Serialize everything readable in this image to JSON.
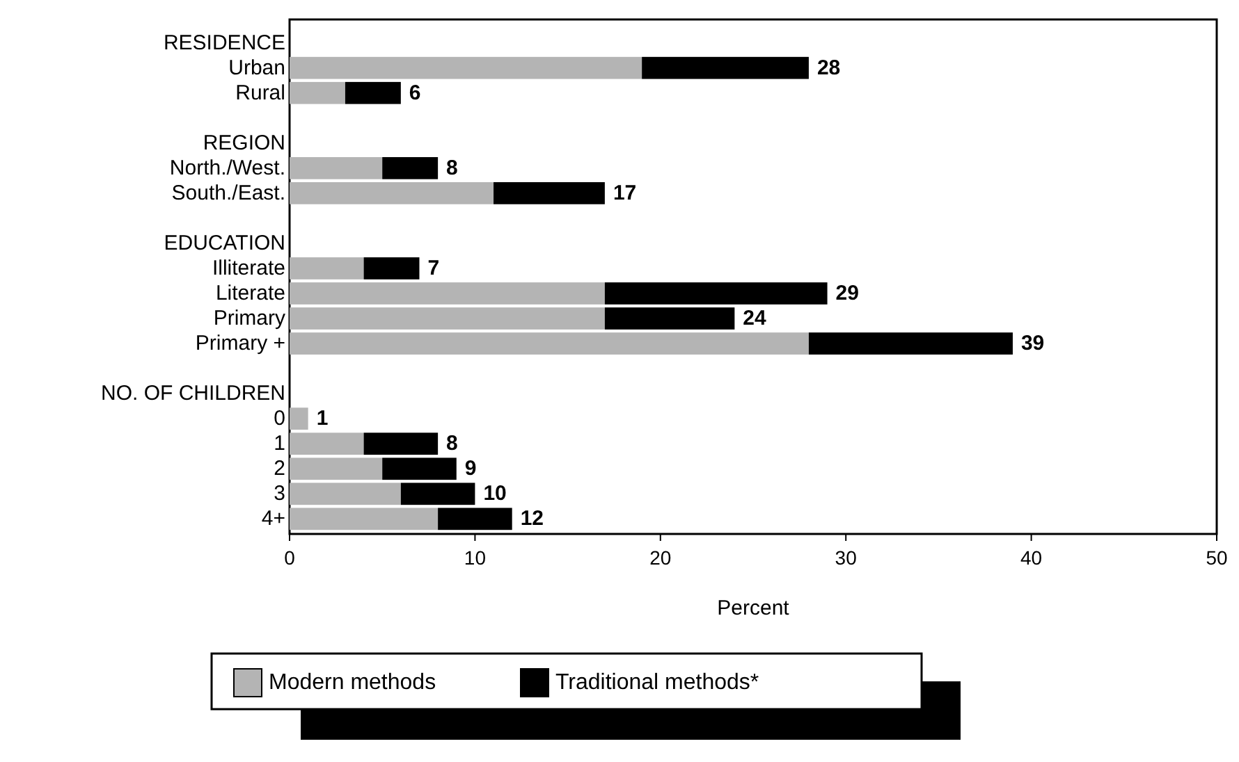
{
  "chart_data": {
    "type": "bar",
    "orientation": "horizontal",
    "stacked": true,
    "categories": [
      "RESIDENCE",
      "Urban",
      "Rural",
      null,
      "REGION",
      "North./West.",
      "South./East.",
      null,
      "EDUCATION",
      "Illiterate",
      "Literate",
      "Primary",
      "Primary +",
      null,
      "NO. OF CHILDREN",
      "0",
      "1",
      "2",
      "3",
      "4+"
    ],
    "series": [
      {
        "name": "Modern methods",
        "color": "#b4b4b4",
        "values": [
          null,
          19,
          3,
          null,
          null,
          5,
          11,
          null,
          null,
          4,
          17,
          17,
          28,
          null,
          null,
          1,
          4,
          5,
          6,
          8
        ]
      },
      {
        "name": "Traditional methods*",
        "color": "#000000",
        "values": [
          null,
          9,
          3,
          null,
          null,
          3,
          6,
          null,
          null,
          3,
          12,
          7,
          11,
          null,
          null,
          0,
          4,
          4,
          4,
          4
        ]
      }
    ],
    "totals": [
      null,
      "28",
      "6",
      null,
      null,
      "8",
      "17",
      null,
      null,
      "7",
      "29",
      "24",
      "39",
      null,
      null,
      "1",
      "8",
      "9",
      "10",
      "12"
    ],
    "xlabel": "Percent",
    "xlim": [
      0,
      50
    ],
    "xticks": [
      0,
      10,
      20,
      30,
      40,
      50
    ],
    "grid": false,
    "legend": "bottom"
  }
}
